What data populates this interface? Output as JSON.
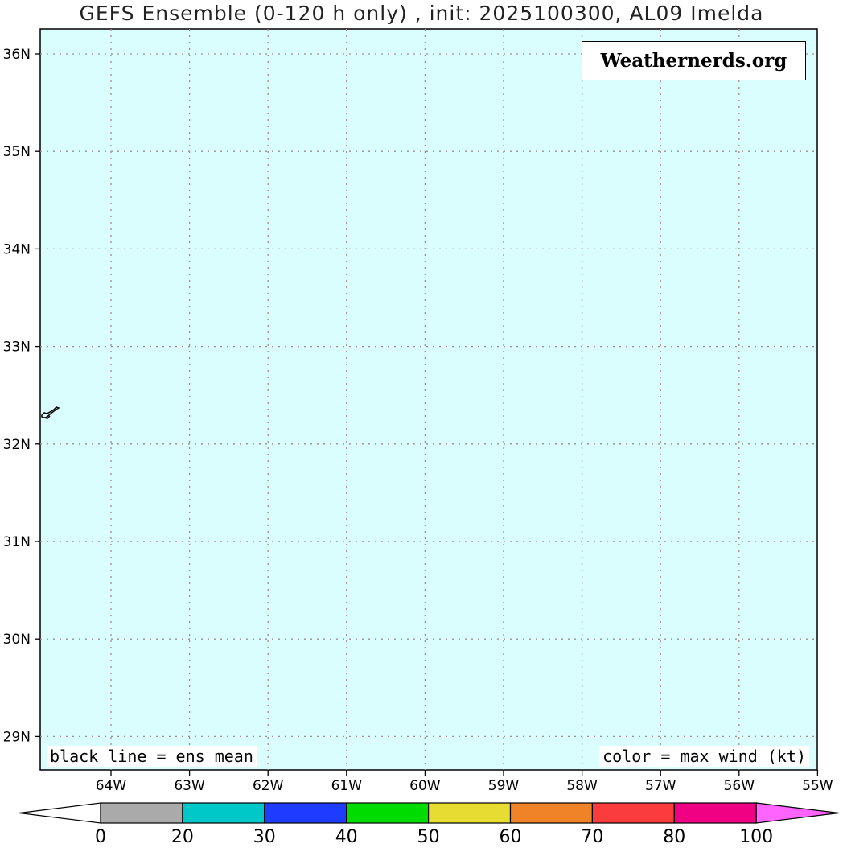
{
  "title": "GEFS Ensemble (0-120 h only) , init: 2025100300, AL09 Imelda",
  "watermark": "Weathernerds.org",
  "notes": {
    "left": "black line = ens mean",
    "right": "color = max wind (kt)"
  },
  "map": {
    "background_color": "#dafdfd",
    "grid": "dotted",
    "lat_labels": [
      "36N",
      "35N",
      "34N",
      "33N",
      "32N",
      "31N",
      "30N",
      "29N"
    ],
    "lon_labels": [
      "64W",
      "63W",
      "62W",
      "61W",
      "60W",
      "59W",
      "58W",
      "57W",
      "56W",
      "55W"
    ],
    "landmass": "Bermuda"
  },
  "colorbar": {
    "labels": [
      "0",
      "20",
      "30",
      "40",
      "50",
      "60",
      "70",
      "80",
      "100"
    ],
    "colors": [
      "#ffffff",
      "#aaaaaa",
      "#00c8c8",
      "#1e3cff",
      "#00dc00",
      "#e6dc32",
      "#f08228",
      "#fa3c3c",
      "#f00082",
      "#ff64ff"
    ]
  }
}
